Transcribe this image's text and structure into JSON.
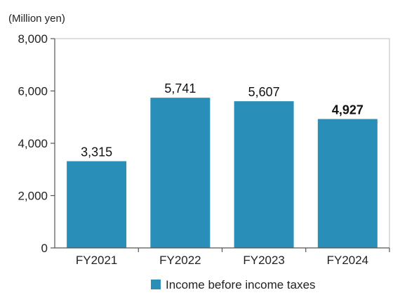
{
  "chart_data": {
    "type": "bar",
    "unit_label": "(Million yen)",
    "categories": [
      "FY2021",
      "FY2022",
      "FY2023",
      "FY2024"
    ],
    "series": [
      {
        "name": "Income before income taxes",
        "values": [
          3315,
          5741,
          5607,
          4927
        ],
        "value_labels": [
          "3,315",
          "5,741",
          "5,607",
          "4,927"
        ],
        "color": "#2a8fb8"
      }
    ],
    "ylim": [
      0,
      8000
    ],
    "yticks": [
      0,
      2000,
      4000,
      6000,
      8000
    ],
    "ytick_labels": [
      "0",
      "2,000",
      "4,000",
      "6,000",
      "8,000"
    ],
    "emphasized_category": "FY2024",
    "legend_position": "bottom-center",
    "grid": false
  }
}
